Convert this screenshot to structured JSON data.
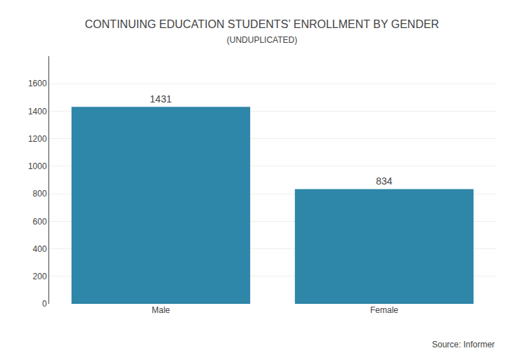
{
  "chart_data": {
    "type": "bar",
    "title": "CONTINUING EDUCATION STUDENTS’ ENROLLMENT BY GENDER",
    "subtitle": "(UNDUPLICATED)",
    "categories": [
      "Male",
      "Female"
    ],
    "values": [
      1431,
      834
    ],
    "color": "#2E86A8",
    "ylim": [
      0,
      1800
    ],
    "yticks": [
      0,
      200,
      400,
      600,
      800,
      1000,
      1200,
      1400,
      1600
    ],
    "grid": true,
    "data_labels": true,
    "annotations": [
      "Source: Informer"
    ]
  }
}
